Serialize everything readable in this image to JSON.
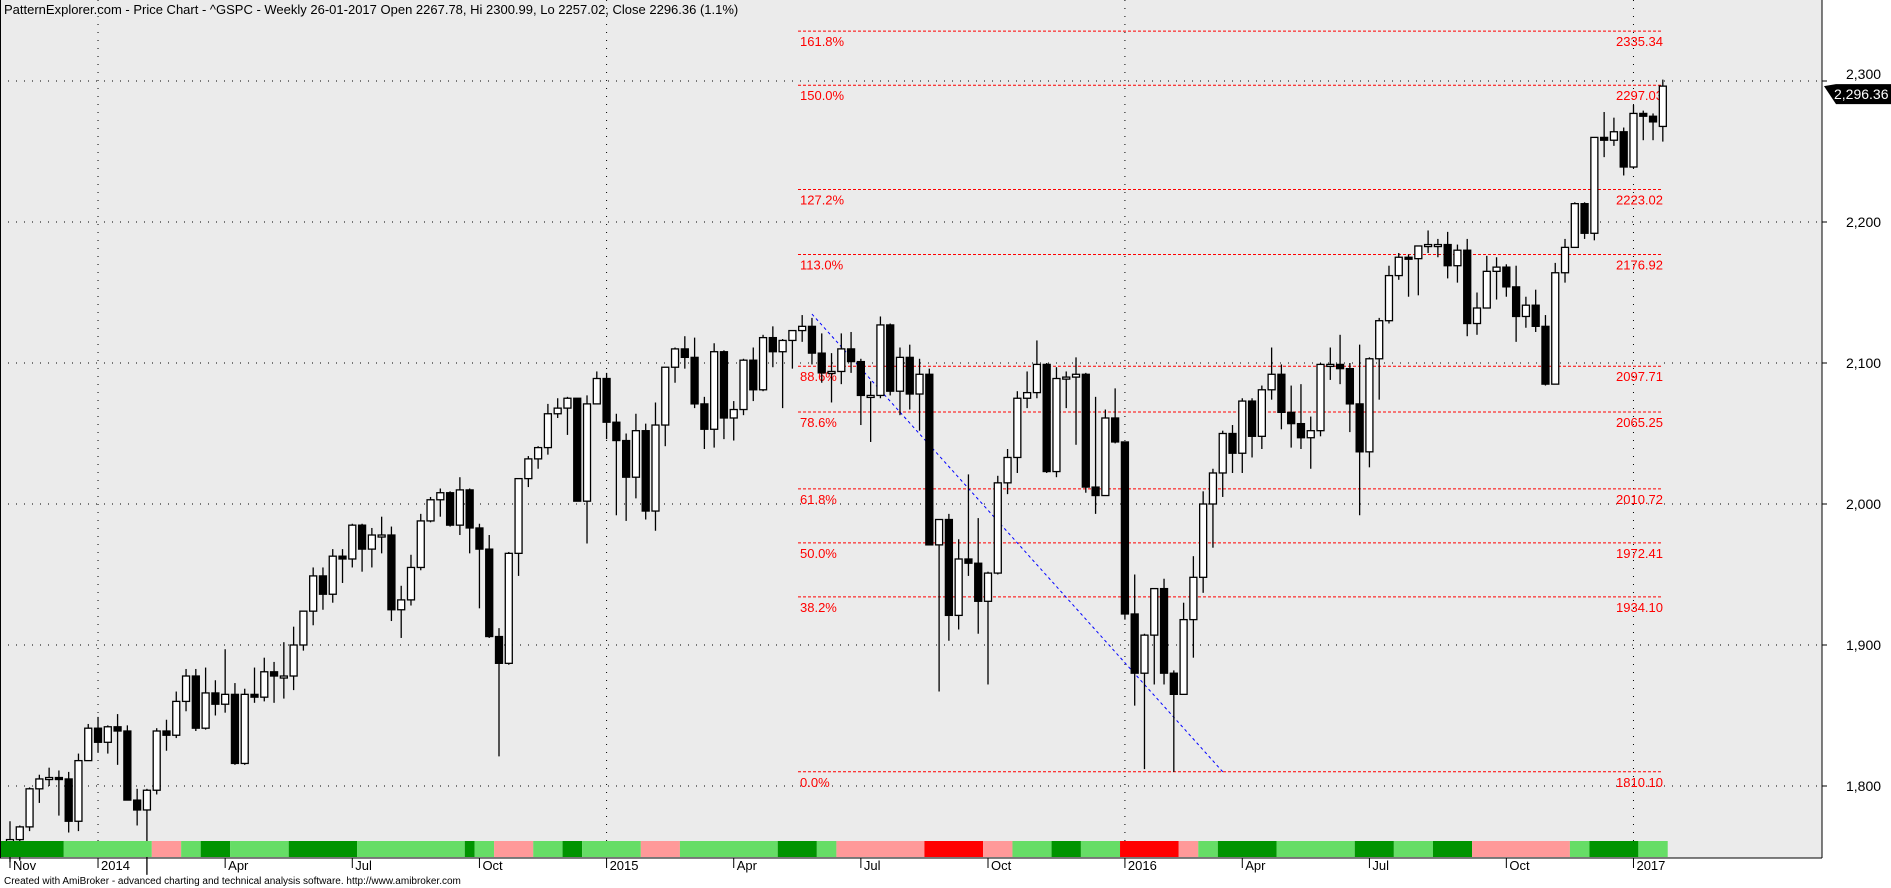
{
  "title": "PatternExplorer.com - Price Chart - ^GSPC - Weekly 26-01-2017 Open 2267.78, Hi 2300.99, Lo 2257.02, Close 2296.36 (1.1%)",
  "footer": "Created with AmiBroker - advanced charting and technical analysis software. http://www.amibroker.com",
  "chart_data": {
    "type": "candlestick",
    "symbol": "^GSPC",
    "interval": "Weekly",
    "ylim": [
      1750,
      2345
    ],
    "grid": true,
    "y_ticks": [
      "1,800",
      "1,900",
      "2,000",
      "2,100",
      "2,200",
      "2,300"
    ],
    "y_tick_values": [
      1800,
      1900,
      2000,
      2100,
      2200,
      2300
    ],
    "x_ticks": [
      {
        "label": "Nov",
        "date": "2013-11-01"
      },
      {
        "label": "2014",
        "date": "2014-01-03"
      },
      {
        "label": "Apr",
        "date": "2014-04-04"
      },
      {
        "label": "Jul",
        "date": "2014-07-04"
      },
      {
        "label": "Oct",
        "date": "2014-10-03"
      },
      {
        "label": "2015",
        "date": "2015-01-02"
      },
      {
        "label": "Apr",
        "date": "2015-04-03"
      },
      {
        "label": "Jul",
        "date": "2015-07-03"
      },
      {
        "label": "Oct",
        "date": "2015-10-02"
      },
      {
        "label": "2016",
        "date": "2016-01-08"
      },
      {
        "label": "Apr",
        "date": "2016-04-01"
      },
      {
        "label": "Jul",
        "date": "2016-07-01"
      },
      {
        "label": "Oct",
        "date": "2016-10-07"
      },
      {
        "label": "2017",
        "date": "2017-01-06"
      }
    ],
    "last_price_tag": "2,296.36",
    "colors": {
      "up_fill": "#ffffff",
      "down_fill": "#000000",
      "fib": "#ff0000",
      "trendline": "#0000ff",
      "background": "#ebebeb"
    },
    "fib_levels": [
      {
        "pct": "161.8%",
        "price": "2335.34"
      },
      {
        "pct": "150.0%",
        "price": "2297.03"
      },
      {
        "pct": "127.2%",
        "price": "2223.02"
      },
      {
        "pct": "113.0%",
        "price": "2176.92"
      },
      {
        "pct": "88.6%",
        "price": "2097.71"
      },
      {
        "pct": "78.6%",
        "price": "2065.25"
      },
      {
        "pct": "61.8%",
        "price": "2010.72"
      },
      {
        "pct": "50.0%",
        "price": "1972.41"
      },
      {
        "pct": "38.2%",
        "price": "1934.10"
      },
      {
        "pct": "0.0%",
        "price": "1810.10"
      }
    ],
    "trendline": {
      "from": {
        "week": 82,
        "price": 2134.72
      },
      "to": {
        "week": 124,
        "price": 1810.1
      }
    },
    "band_colors": {
      "D": "#009400",
      "L": "#66dd66",
      "P": "#ff9999",
      "R": "#ff0000"
    },
    "band_runs": [
      [
        "D",
        6
      ],
      [
        "L",
        9
      ],
      [
        "P",
        3
      ],
      [
        "L",
        2
      ],
      [
        "D",
        3
      ],
      [
        "L",
        6
      ],
      [
        "D",
        7
      ],
      [
        "L",
        11
      ],
      [
        "D",
        1
      ],
      [
        "L",
        2
      ],
      [
        "P",
        4
      ],
      [
        "L",
        3
      ],
      [
        "D",
        2
      ],
      [
        "L",
        6
      ],
      [
        "P",
        4
      ],
      [
        "L",
        10
      ],
      [
        "D",
        4
      ],
      [
        "L",
        2
      ],
      [
        "P",
        9
      ],
      [
        "R",
        6
      ],
      [
        "P",
        3
      ],
      [
        "L",
        4
      ],
      [
        "D",
        3
      ],
      [
        "L",
        4
      ],
      [
        "R",
        6
      ],
      [
        "P",
        2
      ],
      [
        "L",
        2
      ],
      [
        "D",
        6
      ],
      [
        "L",
        8
      ],
      [
        "D",
        4
      ],
      [
        "L",
        4
      ],
      [
        "D",
        4
      ],
      [
        "P",
        10
      ],
      [
        "L",
        2
      ],
      [
        "D",
        5
      ],
      [
        "L",
        3
      ]
    ],
    "candles_ohlc": [
      [
        1759,
        1775,
        1746,
        1762
      ],
      [
        1762,
        1772,
        1747,
        1771
      ],
      [
        1771,
        1799,
        1768,
        1798
      ],
      [
        1798,
        1808,
        1788,
        1805
      ],
      [
        1805,
        1813,
        1800,
        1806
      ],
      [
        1806,
        1811,
        1779,
        1805
      ],
      [
        1805,
        1810,
        1767,
        1775
      ],
      [
        1775,
        1823,
        1768,
        1818
      ],
      [
        1818,
        1844,
        1818,
        1841
      ],
      [
        1841,
        1849,
        1824,
        1831
      ],
      [
        1831,
        1843,
        1823,
        1842
      ],
      [
        1842,
        1851,
        1815,
        1839
      ],
      [
        1839,
        1843,
        1790,
        1790
      ],
      [
        1790,
        1798,
        1772,
        1783
      ],
      [
        1783,
        1798,
        1737,
        1797
      ],
      [
        1797,
        1841,
        1794,
        1839
      ],
      [
        1839,
        1847,
        1825,
        1836
      ],
      [
        1836,
        1867,
        1834,
        1860
      ],
      [
        1860,
        1883,
        1853,
        1878
      ],
      [
        1878,
        1883,
        1839,
        1841
      ],
      [
        1841,
        1884,
        1840,
        1866
      ],
      [
        1866,
        1875,
        1850,
        1858
      ],
      [
        1858,
        1897,
        1852,
        1865
      ],
      [
        1865,
        1873,
        1815,
        1816
      ],
      [
        1816,
        1869,
        1815,
        1865
      ],
      [
        1865,
        1884,
        1859,
        1863
      ],
      [
        1863,
        1891,
        1860,
        1881
      ],
      [
        1881,
        1888,
        1859,
        1878
      ],
      [
        1878,
        1902,
        1862,
        1878
      ],
      [
        1878,
        1913,
        1868,
        1900
      ],
      [
        1900,
        1924,
        1896,
        1924
      ],
      [
        1924,
        1955,
        1914,
        1949
      ],
      [
        1949,
        1955,
        1925,
        1936
      ],
      [
        1936,
        1968,
        1930,
        1963
      ],
      [
        1963,
        1968,
        1944,
        1961
      ],
      [
        1961,
        1986,
        1955,
        1985
      ],
      [
        1985,
        1986,
        1952,
        1968
      ],
      [
        1968,
        1983,
        1955,
        1978
      ],
      [
        1978,
        1991,
        1965,
        1978
      ],
      [
        1978,
        1984,
        1917,
        1925
      ],
      [
        1925,
        1942,
        1905,
        1932
      ],
      [
        1932,
        1964,
        1928,
        1955
      ],
      [
        1955,
        1993,
        1953,
        1988
      ],
      [
        1988,
        2005,
        1987,
        2003
      ],
      [
        2003,
        2011,
        1991,
        2008
      ],
      [
        2008,
        2009,
        1984,
        1985
      ],
      [
        1985,
        2019,
        1978,
        2010
      ],
      [
        2010,
        2011,
        1965,
        1983
      ],
      [
        1983,
        1986,
        1926,
        1968
      ],
      [
        1968,
        1978,
        1905,
        1906
      ],
      [
        1906,
        1912,
        1821,
        1887
      ],
      [
        1887,
        1966,
        1886,
        1965
      ],
      [
        1965,
        2018,
        1949,
        2018
      ],
      [
        2018,
        2034,
        2012,
        2032
      ],
      [
        2032,
        2041,
        2025,
        2040
      ],
      [
        2040,
        2071,
        2035,
        2064
      ],
      [
        2064,
        2075,
        2061,
        2068
      ],
      [
        2068,
        2076,
        2049,
        2075
      ],
      [
        2075,
        2075,
        2002,
        2002
      ],
      [
        2002,
        2077,
        1972,
        2071
      ],
      [
        2071,
        2094,
        2072,
        2089
      ],
      [
        2089,
        2093,
        2046,
        2058
      ],
      [
        2058,
        2064,
        1992,
        2045
      ],
      [
        2045,
        2050,
        1988,
        2019
      ],
      [
        2019,
        2064,
        2004,
        2052
      ],
      [
        2052,
        2057,
        1989,
        1995
      ],
      [
        1995,
        2072,
        1981,
        2056
      ],
      [
        2056,
        2097,
        2041,
        2097
      ],
      [
        2097,
        2111,
        2086,
        2110
      ],
      [
        2110,
        2119,
        2096,
        2104
      ],
      [
        2104,
        2118,
        2068,
        2071
      ],
      [
        2071,
        2076,
        2039,
        2053
      ],
      [
        2053,
        2114,
        2040,
        2108
      ],
      [
        2108,
        2109,
        2046,
        2061
      ],
      [
        2061,
        2073,
        2045,
        2067
      ],
      [
        2067,
        2103,
        2063,
        2102
      ],
      [
        2102,
        2111,
        2073,
        2081
      ],
      [
        2081,
        2120,
        2080,
        2118
      ],
      [
        2118,
        2126,
        2097,
        2108
      ],
      [
        2108,
        2117,
        2068,
        2116
      ],
      [
        2116,
        2123,
        2096,
        2123
      ],
      [
        2123,
        2134,
        2115,
        2126
      ],
      [
        2126,
        2132,
        2099,
        2107
      ],
      [
        2107,
        2121,
        2086,
        2093
      ],
      [
        2093,
        2107,
        2072,
        2094
      ],
      [
        2094,
        2121,
        2085,
        2110
      ],
      [
        2110,
        2122,
        2093,
        2101
      ],
      [
        2101,
        2103,
        2056,
        2077
      ],
      [
        2077,
        2087,
        2044,
        2077
      ],
      [
        2077,
        2133,
        2075,
        2127
      ],
      [
        2127,
        2128,
        2077,
        2080
      ],
      [
        2080,
        2111,
        2063,
        2104
      ],
      [
        2104,
        2113,
        2067,
        2078
      ],
      [
        2078,
        2103,
        2052,
        2092
      ],
      [
        2092,
        2096,
        1971,
        1971
      ],
      [
        1971,
        1989,
        1867,
        1989
      ],
      [
        1989,
        1993,
        1903,
        1921
      ],
      [
        1921,
        1975,
        1911,
        1961
      ],
      [
        1961,
        2021,
        1949,
        1958
      ],
      [
        1958,
        1990,
        1908,
        1931
      ],
      [
        1931,
        1952,
        1872,
        1951
      ],
      [
        1951,
        2020,
        1950,
        2015
      ],
      [
        2015,
        2039,
        2007,
        2033
      ],
      [
        2033,
        2080,
        2022,
        2075
      ],
      [
        2075,
        2094,
        2068,
        2079
      ],
      [
        2079,
        2116,
        2075,
        2099
      ],
      [
        2099,
        2100,
        2022,
        2023
      ],
      [
        2023,
        2097,
        2019,
        2089
      ],
      [
        2089,
        2094,
        2068,
        2090
      ],
      [
        2090,
        2104,
        2042,
        2092
      ],
      [
        2092,
        2093,
        2008,
        2012
      ],
      [
        2012,
        2076,
        1993,
        2006
      ],
      [
        2006,
        2067,
        2006,
        2061
      ],
      [
        2061,
        2082,
        2043,
        2044
      ],
      [
        2044,
        2044,
        1918,
        1922
      ],
      [
        1922,
        1950,
        1857,
        1880
      ],
      [
        1880,
        1908,
        1812,
        1907
      ],
      [
        1907,
        1940,
        1872,
        1940
      ],
      [
        1940,
        1947,
        1872,
        1880
      ],
      [
        1880,
        1882,
        1810,
        1865
      ],
      [
        1865,
        1930,
        1865,
        1918
      ],
      [
        1918,
        1963,
        1891,
        1948
      ],
      [
        1948,
        2009,
        1937,
        2000
      ],
      [
        2000,
        2025,
        1969,
        2022
      ],
      [
        2022,
        2052,
        2005,
        2050
      ],
      [
        2050,
        2056,
        2022,
        2036
      ],
      [
        2036,
        2075,
        2022,
        2073
      ],
      [
        2073,
        2075,
        2033,
        2048
      ],
      [
        2048,
        2084,
        2039,
        2081
      ],
      [
        2081,
        2111,
        2074,
        2092
      ],
      [
        2092,
        2099,
        2053,
        2065
      ],
      [
        2065,
        2084,
        2040,
        2057
      ],
      [
        2057,
        2085,
        2039,
        2047
      ],
      [
        2047,
        2062,
        2025,
        2052
      ],
      [
        2052,
        2100,
        2048,
        2099
      ],
      [
        2099,
        2111,
        2088,
        2099
      ],
      [
        2099,
        2120,
        2085,
        2096
      ],
      [
        2096,
        2100,
        2051,
        2071
      ],
      [
        2071,
        2113,
        1992,
        2037
      ],
      [
        2037,
        2104,
        2026,
        2103
      ],
      [
        2103,
        2132,
        2074,
        2130
      ],
      [
        2130,
        2169,
        2128,
        2162
      ],
      [
        2162,
        2178,
        2159,
        2175
      ],
      [
        2175,
        2177,
        2147,
        2174
      ],
      [
        2174,
        2183,
        2148,
        2183
      ],
      [
        2183,
        2194,
        2178,
        2184
      ],
      [
        2184,
        2188,
        2175,
        2184
      ],
      [
        2184,
        2193,
        2160,
        2169
      ],
      [
        2169,
        2184,
        2157,
        2180
      ],
      [
        2180,
        2188,
        2119,
        2128
      ],
      [
        2128,
        2150,
        2120,
        2139
      ],
      [
        2139,
        2176,
        2139,
        2165
      ],
      [
        2165,
        2175,
        2145,
        2168
      ],
      [
        2168,
        2170,
        2147,
        2154
      ],
      [
        2154,
        2169,
        2115,
        2133
      ],
      [
        2133,
        2147,
        2125,
        2141
      ],
      [
        2141,
        2152,
        2122,
        2126
      ],
      [
        2126,
        2134,
        2084,
        2085
      ],
      [
        2085,
        2171,
        2085,
        2164
      ],
      [
        2164,
        2188,
        2157,
        2182
      ],
      [
        2182,
        2214,
        2183,
        2213
      ],
      [
        2213,
        2214,
        2188,
        2192
      ],
      [
        2192,
        2260,
        2187,
        2260
      ],
      [
        2260,
        2278,
        2246,
        2258
      ],
      [
        2258,
        2274,
        2254,
        2264
      ],
      [
        2264,
        2267,
        2233,
        2239
      ],
      [
        2239,
        2283,
        2238,
        2277
      ],
      [
        2277,
        2279,
        2258,
        2275
      ],
      [
        2275,
        2277,
        2258,
        2271
      ],
      [
        2267.78,
        2300.99,
        2257.02,
        2296.36
      ]
    ]
  }
}
